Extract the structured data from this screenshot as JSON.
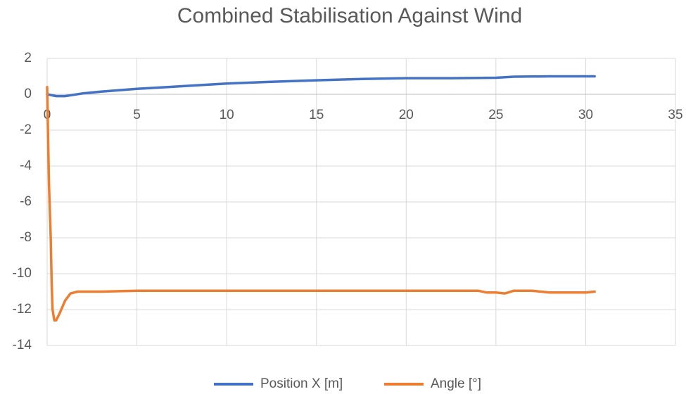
{
  "chart_data": {
    "type": "line",
    "title": "Combined Stabilisation Against Wind",
    "xlim": [
      0,
      35
    ],
    "xticks": [
      0,
      5,
      10,
      15,
      20,
      25,
      30,
      35
    ],
    "ylim": [
      -14,
      2
    ],
    "yticks": [
      2,
      0,
      -2,
      -4,
      -6,
      -8,
      -10,
      -12,
      -14
    ],
    "grid": true,
    "legend": "bottom",
    "series": [
      {
        "name": "Position X [m]",
        "color": "#4472c4",
        "x": [
          0,
          0.5,
          1,
          2,
          3,
          5,
          7.5,
          10,
          12.5,
          15,
          17.5,
          20,
          22.5,
          25,
          26,
          28,
          30.5
        ],
        "values": [
          0,
          -0.1,
          -0.1,
          0.05,
          0.15,
          0.3,
          0.45,
          0.6,
          0.7,
          0.78,
          0.85,
          0.9,
          0.9,
          0.92,
          0.98,
          1.0,
          1.0
        ]
      },
      {
        "name": "Angle [°]",
        "color": "#ed7d31",
        "x": [
          0,
          0.1,
          0.2,
          0.25,
          0.3,
          0.4,
          0.5,
          0.7,
          1,
          1.3,
          1.7,
          3,
          5,
          10,
          15,
          20,
          24,
          24.5,
          25,
          25.5,
          26,
          27,
          28,
          30,
          30.5
        ],
        "values": [
          0.4,
          -5,
          -8,
          -10.5,
          -12,
          -12.6,
          -12.6,
          -12.2,
          -11.5,
          -11.1,
          -11,
          -11,
          -10.95,
          -10.95,
          -10.95,
          -10.95,
          -10.95,
          -11.05,
          -11.05,
          -11.1,
          -10.95,
          -10.95,
          -11.05,
          -11.05,
          -11
        ]
      }
    ]
  }
}
